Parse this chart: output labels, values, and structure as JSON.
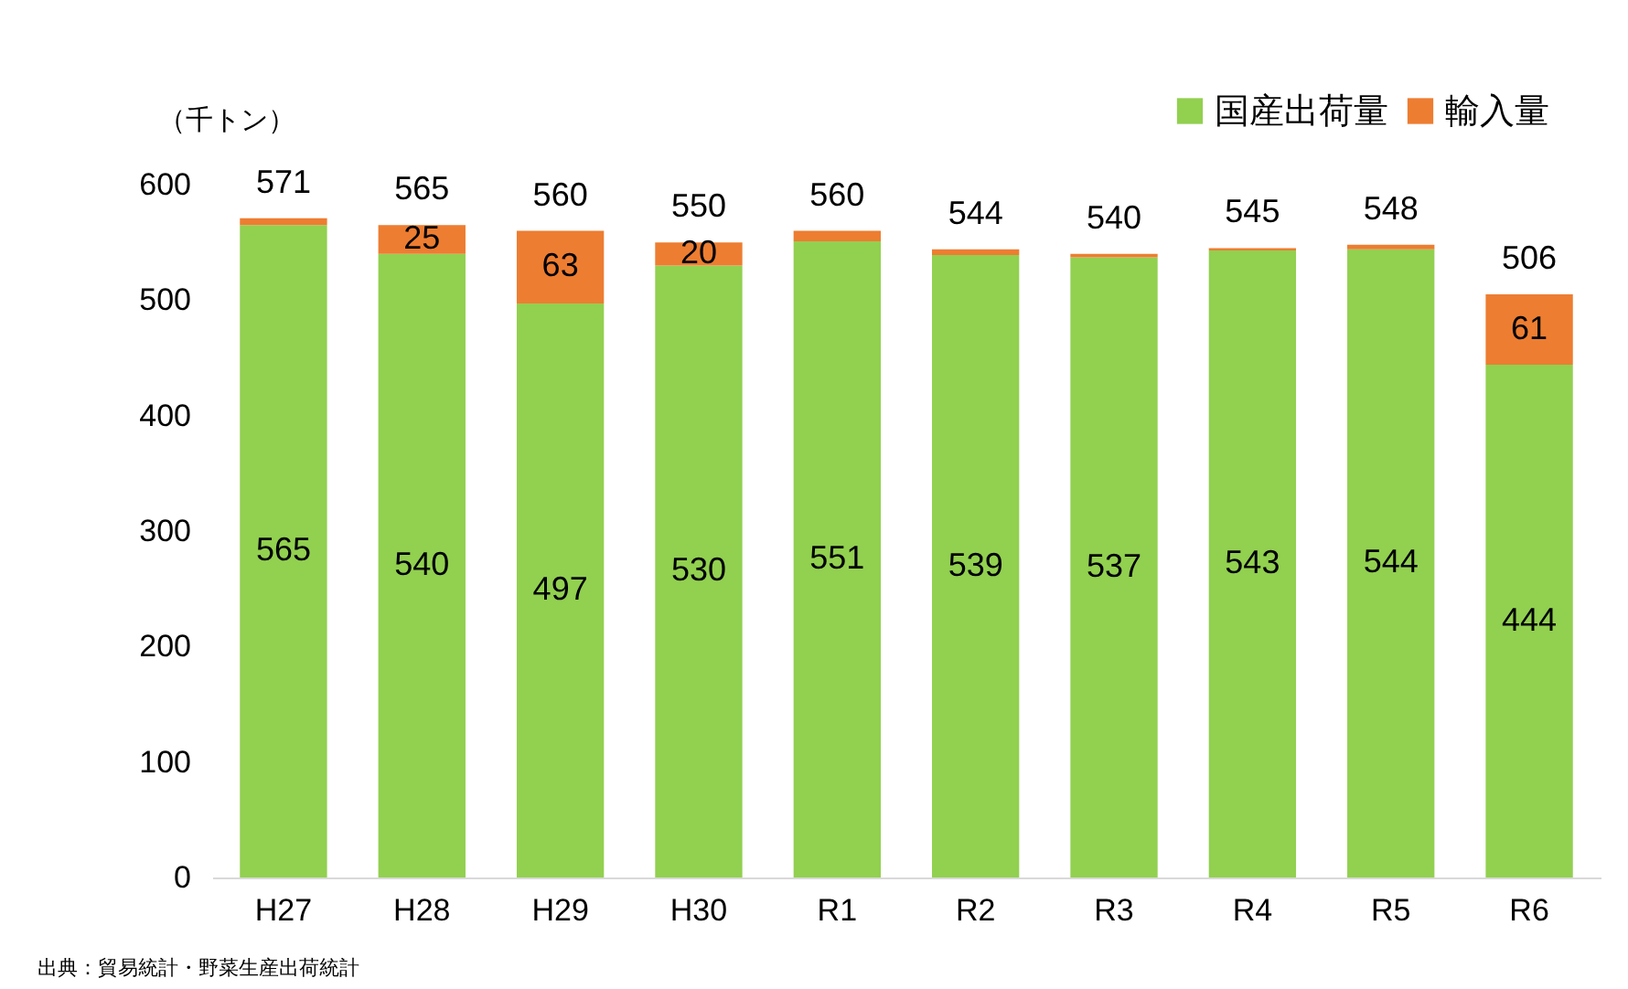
{
  "chart_data": {
    "type": "bar",
    "stacked": true,
    "ylabel": "（千トン）",
    "categories": [
      "H27",
      "H28",
      "H29",
      "H30",
      "R1",
      "R2",
      "R3",
      "R4",
      "R5",
      "R6"
    ],
    "series": [
      {
        "name": "国産出荷量",
        "color": "#92d050",
        "values": [
          565,
          540,
          497,
          530,
          551,
          539,
          537,
          543,
          544,
          444
        ],
        "value_labels": [
          "565",
          "540",
          "497",
          "530",
          "551",
          "539",
          "537",
          "543",
          "544",
          "444"
        ]
      },
      {
        "name": "輸入量",
        "color": "#ed7d31",
        "values": [
          6,
          25,
          63,
          20,
          9,
          5,
          3,
          2,
          4,
          61
        ],
        "value_labels": [
          null,
          "25",
          "63",
          "20",
          null,
          null,
          null,
          null,
          null,
          "61"
        ]
      }
    ],
    "totals": [
      "571",
      "565",
      "560",
      "550",
      "560",
      "544",
      "540",
      "545",
      "548",
      "506"
    ],
    "ylim": [
      0,
      600
    ],
    "yticks": [
      0,
      100,
      200,
      300,
      400,
      500,
      600
    ],
    "grid": false,
    "legend": "top right",
    "annotations": [
      "出典：貿易統計・野菜生産出荷統計"
    ]
  }
}
